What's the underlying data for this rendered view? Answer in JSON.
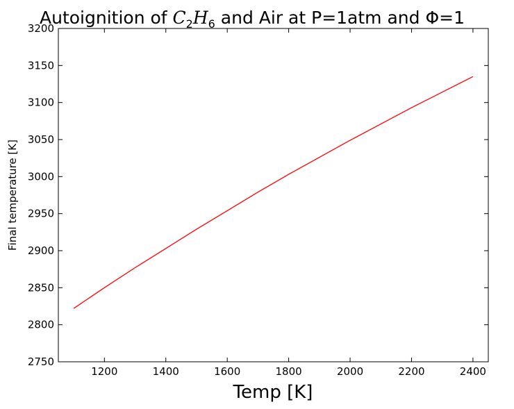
{
  "chart_data": {
    "type": "line",
    "title": {
      "prefix": "Autoignition of ",
      "species_base1": "C",
      "species_sub1": "2",
      "species_base2": "H",
      "species_sub2": "6",
      "middle": " and Air at P=1atm and ",
      "phi_symbol": "Φ",
      "suffix": "=1"
    },
    "xlabel": "Temp [K]",
    "ylabel": "Final temperature [K]",
    "xlim": [
      1050,
      2450
    ],
    "ylim": [
      2750,
      3200
    ],
    "xticks": [
      1200,
      1400,
      1600,
      1800,
      2000,
      2200,
      2400
    ],
    "yticks": [
      2750,
      2800,
      2850,
      2900,
      2950,
      3000,
      3050,
      3100,
      3150,
      3200
    ],
    "grid": false,
    "line_color": "#ff0000",
    "series": [
      {
        "x": [
          1100,
          1200,
          1300,
          1400,
          1500,
          1600,
          1700,
          1800,
          1900,
          2000,
          2100,
          2200,
          2300,
          2400
        ],
        "values": [
          2822,
          2850,
          2877,
          2903,
          2929,
          2954,
          2979,
          3003,
          3026,
          3049,
          3071,
          3093,
          3114,
          3135
        ]
      }
    ]
  }
}
